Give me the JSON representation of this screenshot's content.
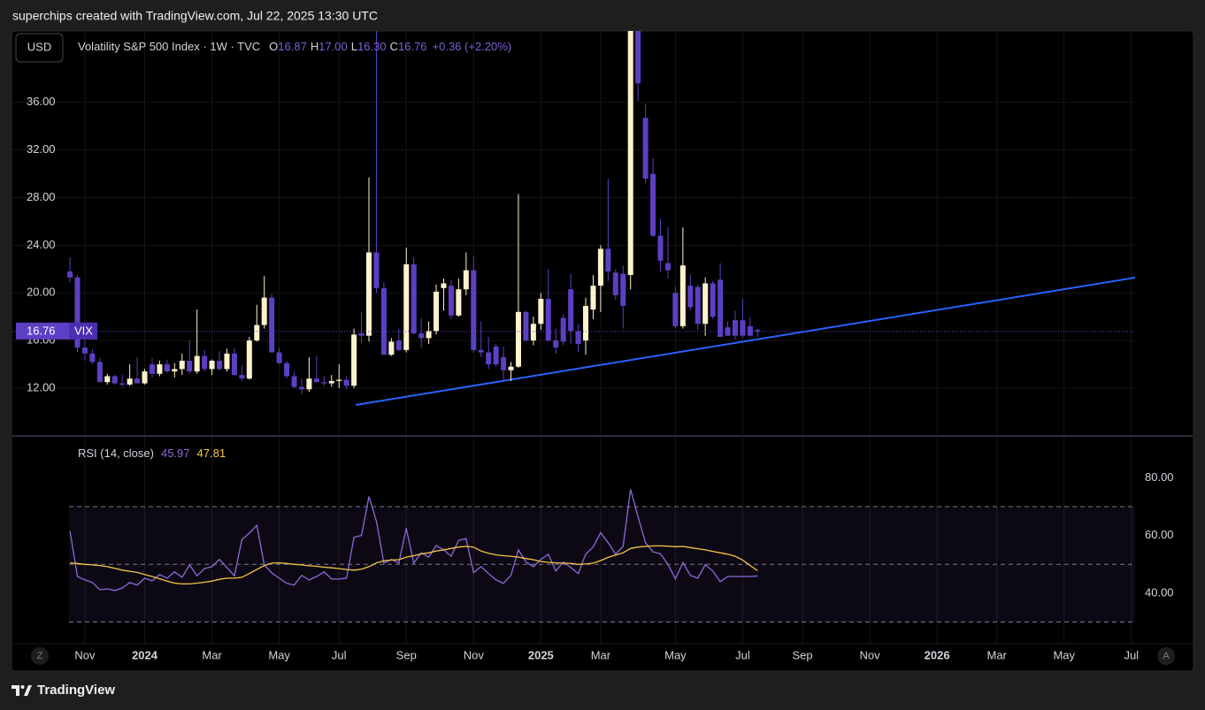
{
  "header": {
    "attribution": "superchips created with TradingView.com, Jul 22, 2025 13:30 UTC"
  },
  "toolbar": {
    "currency": "USD",
    "zoom": "Z",
    "auto_scale": "A"
  },
  "footer": {
    "brand": "TradingView"
  },
  "chart_data": [
    {
      "type": "candlestick",
      "title": "Volatility S&P 500 Index · 1W · TVC",
      "legend": [
        {
          "key": "O",
          "value": "16.87"
        },
        {
          "key": "H",
          "value": "17.00"
        },
        {
          "key": "L",
          "value": "16.30"
        },
        {
          "key": "C",
          "value": "16.76"
        }
      ],
      "change": "+0.36 (+2.20%)",
      "price_tag": {
        "label": "16.76",
        "symbol": "VIX"
      },
      "up_color": "#fff2cc",
      "down_color": "#5c3fc4",
      "open": [
        21.8,
        21.3,
        15.4,
        14.9,
        14.2,
        12.5,
        13.0,
        12.4,
        12.3,
        12.8,
        12.4,
        14.0,
        13.2,
        14.0,
        13.4,
        13.6,
        14.3,
        13.4,
        14.7,
        13.6,
        14.3,
        13.6,
        14.9,
        13.1,
        12.8,
        16.0,
        17.3,
        19.6,
        15.0,
        14.1,
        13.0,
        12.1,
        11.9,
        12.8,
        12.5,
        12.4,
        12.6,
        12.7,
        12.2,
        16.6,
        16.4,
        23.4,
        20.4,
        14.8,
        16.0,
        15.2,
        22.4,
        16.6,
        16.2,
        16.8,
        20.4,
        20.6,
        18.1,
        20.3,
        21.9,
        15.2,
        15.0,
        15.5,
        14.6,
        13.5,
        13.8,
        18.4,
        16.0,
        17.4,
        19.5,
        16.0,
        17.9,
        20.3,
        16.8,
        16.0,
        18.6,
        20.6,
        23.7,
        21.7,
        21.6,
        21.5,
        45.3,
        34.7,
        30.0,
        24.8,
        22.5,
        20.0,
        17.2,
        20.6,
        20.5,
        17.4,
        20.8,
        21.1,
        17.1,
        17.7,
        17.7,
        17.2,
        16.87
      ],
      "high": [
        23.0,
        21.5,
        16.0,
        15.3,
        14.5,
        13.2,
        13.1,
        13.1,
        14.0,
        14.6,
        13.6,
        14.5,
        14.3,
        14.4,
        14.1,
        14.9,
        16.0,
        18.6,
        15.2,
        14.4,
        15.1,
        15.3,
        15.4,
        13.9,
        16.3,
        19.0,
        21.4,
        19.9,
        15.4,
        14.3,
        13.4,
        12.8,
        14.6,
        14.7,
        13.0,
        13.1,
        14.0,
        13.0,
        17.0,
        18.4,
        29.7,
        65.7,
        20.9,
        16.2,
        17.0,
        23.8,
        23.0,
        17.9,
        17.6,
        20.7,
        21.2,
        21.1,
        21.2,
        23.4,
        23.1,
        17.6,
        16.3,
        15.7,
        15.5,
        14.2,
        28.3,
        18.5,
        18.0,
        20.0,
        22.0,
        17.0,
        18.2,
        21.6,
        17.4,
        19.6,
        21.5,
        24.0,
        29.6,
        22.0,
        22.3,
        45.6,
        60.1,
        35.9,
        31.3,
        26.2,
        25.5,
        20.5,
        25.5,
        21.5,
        20.7,
        21.3,
        21.0,
        22.5,
        17.6,
        18.5,
        19.5,
        17.9,
        17.0
      ],
      "low": [
        20.9,
        15.0,
        14.3,
        14.0,
        12.5,
        12.3,
        12.3,
        12.1,
        12.2,
        12.4,
        12.3,
        12.9,
        13.0,
        13.3,
        12.9,
        13.1,
        13.2,
        13.2,
        13.4,
        13.1,
        13.5,
        13.4,
        13.0,
        12.6,
        12.7,
        15.9,
        17.0,
        15.0,
        14.0,
        12.8,
        12.0,
        11.5,
        11.7,
        12.5,
        12.2,
        12.1,
        12.0,
        11.9,
        12.0,
        15.8,
        15.9,
        20.0,
        14.8,
        14.7,
        15.1,
        15.0,
        16.5,
        15.4,
        15.7,
        16.5,
        18.5,
        17.8,
        18.0,
        19.8,
        15.0,
        14.6,
        13.6,
        13.8,
        12.7,
        12.6,
        13.7,
        15.9,
        15.6,
        16.9,
        15.9,
        14.9,
        15.6,
        15.7,
        15.0,
        14.8,
        17.8,
        18.4,
        21.0,
        19.4,
        17.0,
        20.3,
        36.1,
        29.2,
        24.7,
        21.8,
        21.2,
        17.0,
        17.0,
        18.5,
        16.9,
        16.4,
        17.8,
        16.3,
        16.4,
        16.1,
        16.2,
        16.3,
        16.3
      ],
      "close": [
        21.3,
        15.4,
        14.9,
        14.2,
        12.5,
        13.0,
        12.4,
        12.3,
        12.8,
        12.4,
        13.4,
        13.2,
        14.0,
        13.4,
        13.6,
        14.3,
        13.4,
        14.7,
        13.6,
        14.3,
        13.6,
        14.9,
        13.1,
        12.8,
        16.0,
        17.3,
        19.6,
        15.0,
        14.1,
        13.0,
        12.1,
        11.9,
        12.8,
        12.5,
        12.4,
        12.6,
        12.7,
        12.2,
        16.5,
        16.4,
        23.4,
        20.4,
        14.8,
        15.9,
        15.2,
        22.4,
        16.6,
        16.2,
        16.8,
        20.1,
        20.8,
        18.1,
        20.3,
        21.9,
        15.2,
        15.0,
        14.0,
        14.0,
        13.5,
        13.8,
        18.4,
        16.0,
        17.4,
        19.5,
        16.0,
        15.4,
        15.9,
        16.8,
        15.7,
        18.9,
        20.6,
        23.7,
        21.8,
        19.8,
        18.9,
        45.3,
        37.6,
        29.6,
        24.8,
        22.7,
        21.9,
        17.2,
        22.3,
        18.8,
        17.4,
        20.8,
        18.0,
        16.3,
        16.4,
        16.4,
        16.4,
        16.4,
        16.76
      ],
      "xlim": [
        -7.7,
        142.5
      ],
      "xticks": [
        {
          "value": 2,
          "label": "Nov"
        },
        {
          "value": 10,
          "label": "2024"
        },
        {
          "value": 19,
          "label": "Mar"
        },
        {
          "value": 28,
          "label": "May"
        },
        {
          "value": 36,
          "label": "Jul"
        },
        {
          "value": 45,
          "label": "Sep"
        },
        {
          "value": 54,
          "label": "Nov"
        },
        {
          "value": 63,
          "label": "2025"
        },
        {
          "value": 71,
          "label": "Mar"
        },
        {
          "value": 81,
          "label": "May"
        },
        {
          "value": 90,
          "label": "Jul"
        },
        {
          "value": 98,
          "label": "Sep"
        },
        {
          "value": 107,
          "label": "Nov"
        },
        {
          "value": 116,
          "label": "2026"
        },
        {
          "value": 124,
          "label": "Mar"
        },
        {
          "value": 133,
          "label": "May"
        },
        {
          "value": 142,
          "label": "Jul"
        }
      ],
      "ylim": [
        8.06,
        42.0
      ],
      "yticks": [
        {
          "value": 12,
          "label": "12.00"
        },
        {
          "value": 16,
          "label": "16.00"
        },
        {
          "value": 20,
          "label": "20.00"
        },
        {
          "value": 24,
          "label": "24.00"
        },
        {
          "value": 28,
          "label": "28.00"
        },
        {
          "value": 32,
          "label": "32.00"
        },
        {
          "value": 36,
          "label": "36.00"
        }
      ],
      "grid": true
    },
    {
      "type": "line",
      "title": "RSI (14, close)",
      "series": [
        {
          "color": "#8c6ad8",
          "last_label": "45.97",
          "values": [
            61.5,
            45.8,
            44.6,
            43.7,
            41.2,
            41.5,
            40.9,
            41.8,
            43.7,
            42.8,
            45.2,
            44.3,
            46.5,
            45.2,
            47.4,
            45.5,
            49.8,
            46.0,
            48.5,
            49.2,
            51.7,
            48.9,
            46.0,
            58.6,
            60.8,
            63.5,
            49.8,
            47.0,
            45.2,
            43.4,
            42.8,
            46.2,
            44.6,
            45.8,
            47.4,
            44.9,
            44.9,
            45.2,
            59.4,
            60.0,
            73.5,
            64.9,
            50.4,
            51.7,
            50.4,
            62.5,
            50.4,
            54.0,
            52.5,
            56.5,
            55.0,
            52.8,
            58.3,
            58.9,
            47.1,
            49.2,
            46.8,
            44.6,
            43.4,
            46.2,
            55.0,
            50.8,
            49.2,
            51.7,
            53.5,
            47.7,
            50.8,
            48.9,
            46.8,
            53.5,
            56.0,
            61.0,
            57.5,
            53.5,
            56.3,
            76.0,
            66.5,
            57.5,
            54.3,
            53.7,
            50.0,
            45.0,
            50.6,
            46.2,
            45.2,
            49.9,
            47.7,
            44.0,
            45.8,
            45.8,
            45.8,
            45.8,
            45.97
          ]
        },
        {
          "color": "#f7c548",
          "last_label": "47.81",
          "values": [
            50.5,
            50.3,
            50.0,
            49.8,
            49.6,
            49.2,
            48.6,
            48.0,
            47.6,
            47.2,
            46.5,
            45.8,
            45.0,
            44.2,
            43.5,
            43.2,
            43.2,
            43.5,
            43.8,
            44.2,
            44.8,
            45.2,
            45.2,
            45.5,
            46.8,
            48.2,
            49.6,
            50.4,
            50.5,
            50.3,
            50.0,
            49.8,
            49.5,
            49.3,
            49.0,
            48.8,
            48.5,
            48.2,
            48.0,
            48.3,
            49.2,
            50.5,
            51.2,
            51.5,
            51.6,
            52.5,
            53.0,
            53.6,
            54.0,
            54.6,
            55.0,
            55.5,
            56.0,
            56.2,
            56.0,
            54.6,
            53.8,
            53.3,
            53.0,
            52.8,
            52.5,
            52.0,
            51.6,
            51.0,
            50.7,
            50.5,
            50.4,
            50.3,
            50.0,
            50.1,
            50.4,
            51.3,
            52.4,
            53.2,
            54.0,
            55.5,
            56.0,
            56.2,
            56.4,
            56.4,
            56.3,
            56.1,
            56.2,
            55.8,
            55.4,
            55.0,
            54.5,
            54.0,
            53.5,
            52.8,
            51.5,
            49.6,
            47.81
          ]
        }
      ],
      "bands": [
        70,
        30
      ],
      "midline": 50,
      "ylim": [
        22.5,
        94.2
      ],
      "yticks": [
        {
          "value": 80,
          "label": "80.00"
        },
        {
          "value": 60,
          "label": "60.00"
        },
        {
          "value": 40,
          "label": "40.00"
        }
      ]
    }
  ]
}
